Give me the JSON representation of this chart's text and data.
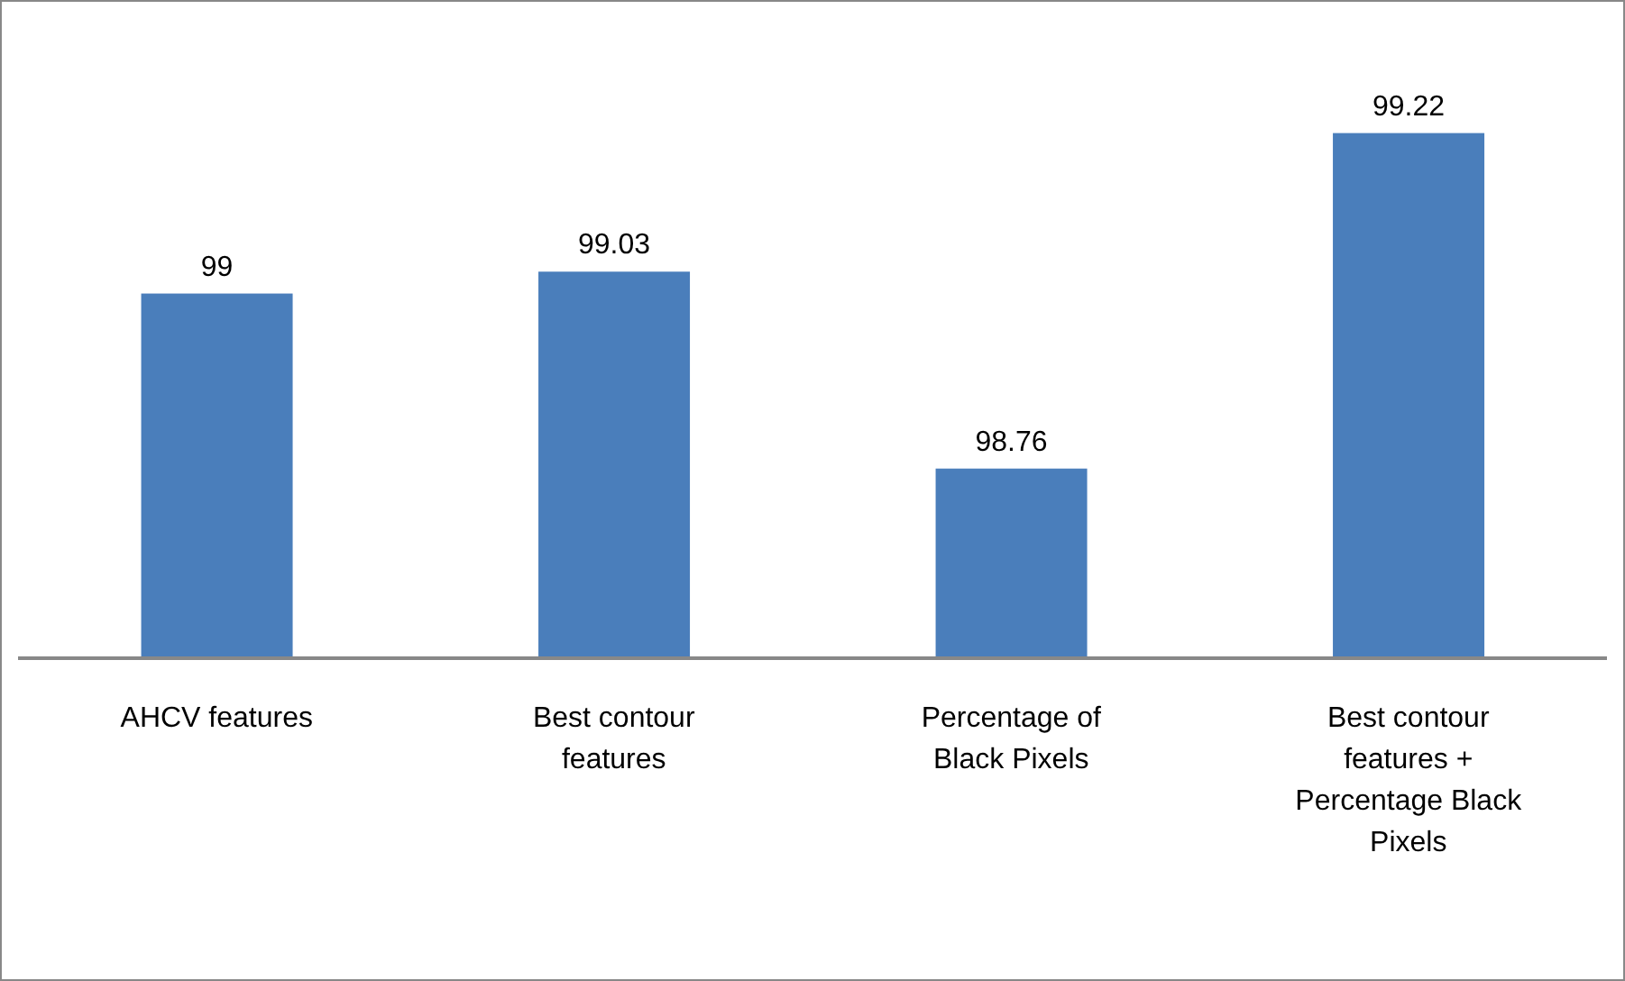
{
  "chart_data": {
    "type": "bar",
    "categories": [
      "AHCV features",
      "Best contour features",
      "Percentage of Black Pixels",
      "Best contour features + Percentage Black Pixels"
    ],
    "values": [
      99,
      99.03,
      98.76,
      99.22
    ],
    "color": "#4a7ebb",
    "ylim": [
      98.5,
      99.4
    ],
    "data_labels": true,
    "tick_labels": "x"
  }
}
